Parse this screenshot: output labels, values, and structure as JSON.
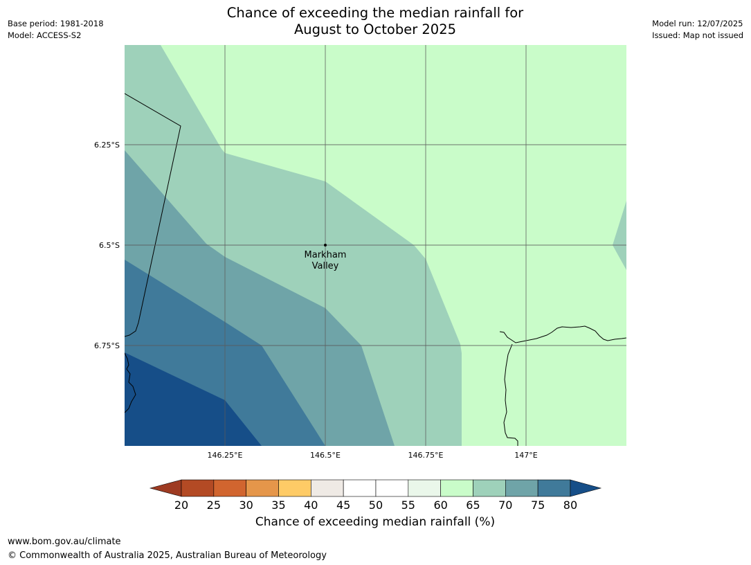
{
  "header": {
    "title_line1": "Chance of exceeding the median rainfall for",
    "title_line2": "August to October 2025",
    "base_period": "Base period: 1981-2018",
    "model": "Model: ACCESS-S2",
    "model_run": "Model run: 12/07/2025",
    "issued": "Issued: Map not issued"
  },
  "map": {
    "lon_ticks": [
      "146.25°E",
      "146.5°E",
      "146.75°E",
      "147°E"
    ],
    "lat_ticks": [
      "6.25°S",
      "6.5°S",
      "6.75°S"
    ],
    "place": {
      "name_line1": "Markham",
      "name_line2": "Valley"
    },
    "zone_colors": {
      "60_65": "#c9fcc9",
      "65_70": "#9ed1ba",
      "70_75": "#6fa4a8",
      "75_80": "#407a9a",
      "80_plus": "#164e88"
    }
  },
  "colorbar": {
    "title": "Chance of exceeding median rainfall (%)",
    "ticks": [
      "20",
      "25",
      "30",
      "35",
      "40",
      "45",
      "50",
      "55",
      "60",
      "65",
      "70",
      "75",
      "80"
    ],
    "under_color": "#9e3b22",
    "over_color": "#164e88",
    "colors": [
      "#b34a24",
      "#d1652f",
      "#e5964a",
      "#fecb66",
      "#efeae5",
      "#ffffff",
      "#ffffff",
      "#eaf7ea",
      "#c9fcc9",
      "#9ed1ba",
      "#6fa4a8",
      "#407a9a"
    ]
  },
  "footer": {
    "url": "www.bom.gov.au/climate",
    "copyright": "© Commonwealth of Australia 2025, Australian Bureau of Meteorology"
  }
}
